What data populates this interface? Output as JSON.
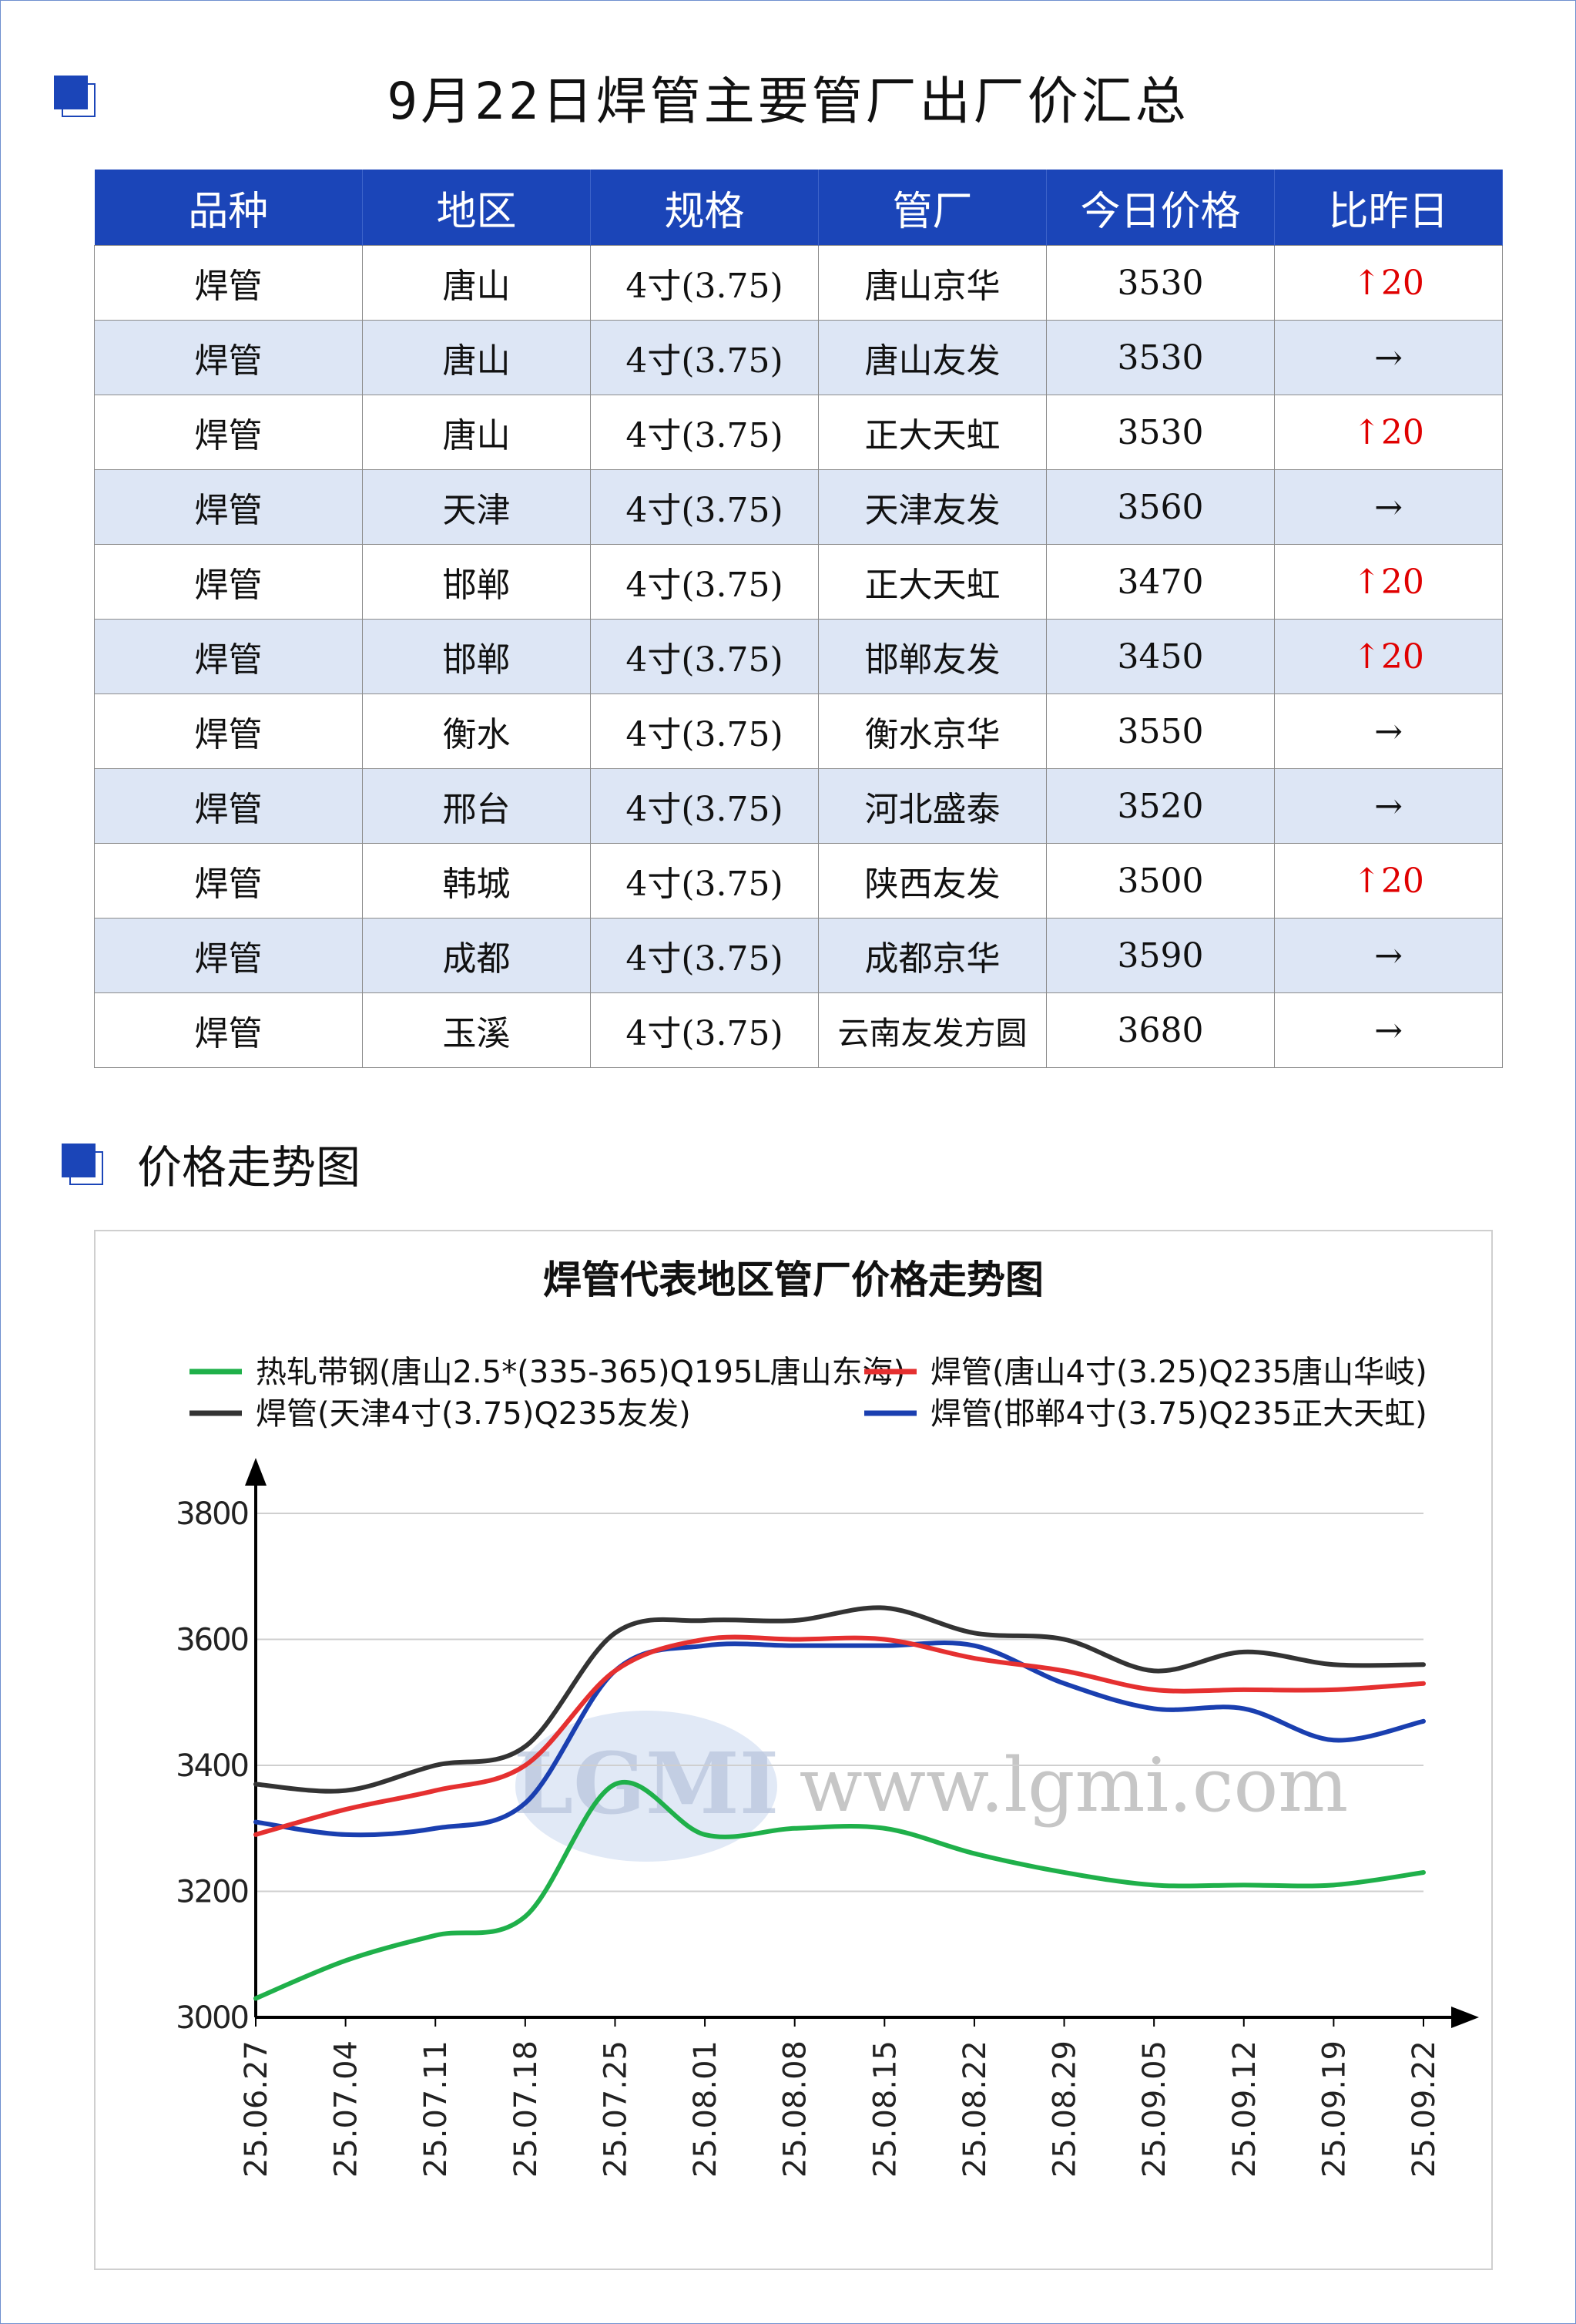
{
  "header": {
    "title": "9月22日焊管主要管厂出厂价汇总"
  },
  "table": {
    "columns": [
      "品种",
      "地区",
      "规格",
      "管厂",
      "今日价格",
      "比昨日"
    ],
    "rows": [
      {
        "variety": "焊管",
        "region": "唐山",
        "spec": "4寸(3.75)",
        "mill": "唐山京华",
        "price": "3530",
        "change": "↑20",
        "dir": "up"
      },
      {
        "variety": "焊管",
        "region": "唐山",
        "spec": "4寸(3.75)",
        "mill": "唐山友发",
        "price": "3530",
        "change": "→",
        "dir": "flat"
      },
      {
        "variety": "焊管",
        "region": "唐山",
        "spec": "4寸(3.75)",
        "mill": "正大天虹",
        "price": "3530",
        "change": "↑20",
        "dir": "up"
      },
      {
        "variety": "焊管",
        "region": "天津",
        "spec": "4寸(3.75)",
        "mill": "天津友发",
        "price": "3560",
        "change": "→",
        "dir": "flat"
      },
      {
        "variety": "焊管",
        "region": "邯郸",
        "spec": "4寸(3.75)",
        "mill": "正大天虹",
        "price": "3470",
        "change": "↑20",
        "dir": "up"
      },
      {
        "variety": "焊管",
        "region": "邯郸",
        "spec": "4寸(3.75)",
        "mill": "邯郸友发",
        "price": "3450",
        "change": "↑20",
        "dir": "up"
      },
      {
        "variety": "焊管",
        "region": "衡水",
        "spec": "4寸(3.75)",
        "mill": "衡水京华",
        "price": "3550",
        "change": "→",
        "dir": "flat"
      },
      {
        "variety": "焊管",
        "region": "邢台",
        "spec": "4寸(3.75)",
        "mill": "河北盛泰",
        "price": "3520",
        "change": "→",
        "dir": "flat"
      },
      {
        "variety": "焊管",
        "region": "韩城",
        "spec": "4寸(3.75)",
        "mill": "陕西友发",
        "price": "3500",
        "change": "↑20",
        "dir": "up"
      },
      {
        "variety": "焊管",
        "region": "成都",
        "spec": "4寸(3.75)",
        "mill": "成都京华",
        "price": "3590",
        "change": "→",
        "dir": "flat"
      },
      {
        "variety": "焊管",
        "region": "玉溪",
        "spec": "4寸(3.75)",
        "mill": "云南友发方圆",
        "price": "3680",
        "change": "→",
        "dir": "flat"
      }
    ]
  },
  "section": {
    "title": "价格走势图"
  },
  "watermark": {
    "logo": "LGMI",
    "url": "www.lgmi.com"
  },
  "chart_data": {
    "type": "line",
    "title": "焊管代表地区管厂价格走势图",
    "x": [
      "25.06.27",
      "25.07.04",
      "25.07.11",
      "25.07.18",
      "25.07.25",
      "25.08.01",
      "25.08.08",
      "25.08.15",
      "25.08.22",
      "25.08.29",
      "25.09.05",
      "25.09.12",
      "25.09.19",
      "25.09.22"
    ],
    "y_ticks": [
      3000,
      3200,
      3400,
      3600,
      3800
    ],
    "ylim": [
      3000,
      3800
    ],
    "grid": true,
    "legend_position": "top",
    "series": [
      {
        "name": "热轧带钢(唐山2.5*(335-365)Q195L唐山东海)",
        "color": "#1fb04a",
        "values": [
          3030,
          3090,
          3130,
          3160,
          3370,
          3290,
          3300,
          3300,
          3260,
          3230,
          3210,
          3210,
          3210,
          3230
        ]
      },
      {
        "name": "焊管(唐山4寸(3.25)Q235唐山华岐)",
        "color": "#e53030",
        "values": [
          3290,
          3330,
          3360,
          3400,
          3550,
          3600,
          3600,
          3600,
          3570,
          3550,
          3520,
          3520,
          3520,
          3530
        ]
      },
      {
        "name": "焊管(天津4寸(3.75)Q235友发)",
        "color": "#333333",
        "values": [
          3370,
          3360,
          3400,
          3430,
          3610,
          3630,
          3630,
          3650,
          3610,
          3600,
          3550,
          3580,
          3560,
          3560
        ]
      },
      {
        "name": "焊管(邯郸4寸(3.75)Q235正大天虹)",
        "color": "#1a3fb0",
        "values": [
          3310,
          3290,
          3300,
          3340,
          3550,
          3590,
          3590,
          3590,
          3590,
          3530,
          3490,
          3490,
          3440,
          3470
        ]
      }
    ]
  }
}
